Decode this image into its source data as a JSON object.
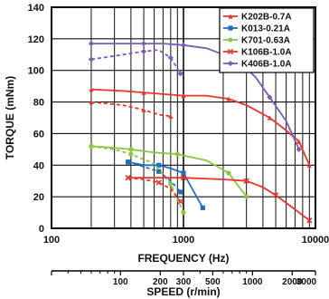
{
  "chart_data": {
    "type": "line",
    "xlabel": "FREQUENCY (Hz)",
    "ylabel": "TORQUE (mNm)",
    "x_scale": "log",
    "xlim": [
      100,
      10000
    ],
    "ylim": [
      0,
      140
    ],
    "x_ticks": [
      100,
      1000,
      10000
    ],
    "y_ticks": [
      0,
      20,
      40,
      60,
      80,
      100,
      120,
      140
    ],
    "grid": true,
    "legend_position": "top-right",
    "secondary_axis": {
      "label": "SPEED (r/min)",
      "ticks": [
        {
          "label": "100",
          "freq": 333
        },
        {
          "label": "200",
          "freq": 667
        },
        {
          "label": "300",
          "freq": 1000
        },
        {
          "label": "500",
          "freq": 1667
        },
        {
          "label": "1000",
          "freq": 3333
        },
        {
          "label": "2000",
          "freq": 6667
        },
        {
          "label": "3000",
          "freq": 10000
        }
      ]
    },
    "series": [
      {
        "name": "K202B-0.7A",
        "color": "#e8352b",
        "marker": "triangle",
        "solid": {
          "x": [
            200,
            350,
            500,
            700,
            1000,
            1500,
            2200,
            3000,
            4500,
            6000,
            7500,
            9000
          ],
          "y": [
            88,
            87,
            86,
            85,
            84,
            84,
            82,
            78,
            70,
            62,
            55,
            40
          ]
        },
        "dashed": {
          "x": [
            200,
            350,
            500,
            650,
            800
          ],
          "y": [
            80,
            78,
            75,
            72,
            71
          ]
        }
      },
      {
        "name": "K013-0.21A",
        "color": "#1f6fc5",
        "marker": "square",
        "solid": {
          "x": [
            380,
            500,
            650,
            800,
            1000,
            1400
          ],
          "y": [
            42,
            40,
            40,
            38,
            35,
            13
          ]
        },
        "dashed": {
          "x": [
            380,
            500,
            650,
            800,
            950
          ],
          "y": [
            42,
            39,
            36,
            30,
            23
          ]
        }
      },
      {
        "name": "K701-0.63A",
        "color": "#8cc63f",
        "marker": "circle",
        "solid": {
          "x": [
            200,
            300,
            400,
            600,
            900,
            1500,
            2200,
            3000
          ],
          "y": [
            52,
            51,
            50,
            48,
            47,
            43,
            35,
            20
          ]
        },
        "dashed": {
          "x": [
            200,
            300,
            400,
            600,
            800,
            1000
          ],
          "y": [
            52,
            50,
            47,
            41,
            28,
            10
          ]
        }
      },
      {
        "name": "K106B-1.0A",
        "color": "#e8352b",
        "marker": "cross",
        "solid": {
          "x": [
            380,
            600,
            1000,
            2000,
            3000,
            4000,
            5000,
            7000,
            9000
          ],
          "y": [
            32,
            32,
            32,
            31,
            30,
            26,
            21,
            12,
            5
          ]
        },
        "dashed": {
          "x": [
            380,
            500,
            650,
            800,
            950
          ],
          "y": [
            32,
            31,
            29,
            25,
            17
          ]
        }
      },
      {
        "name": "K406B-1.0A",
        "color": "#7b5cb8",
        "marker": "diamond",
        "solid": {
          "x": [
            200,
            350,
            500,
            700,
            1000,
            1500,
            2500,
            3500,
            4500,
            6000,
            7500
          ],
          "y": [
            117,
            117,
            117,
            117,
            116,
            114,
            107,
            96,
            83,
            68,
            50
          ]
        },
        "dashed": {
          "x": [
            200,
            350,
            500,
            650,
            800,
            950
          ],
          "y": [
            107,
            110,
            112,
            113,
            108,
            98
          ]
        }
      }
    ]
  }
}
